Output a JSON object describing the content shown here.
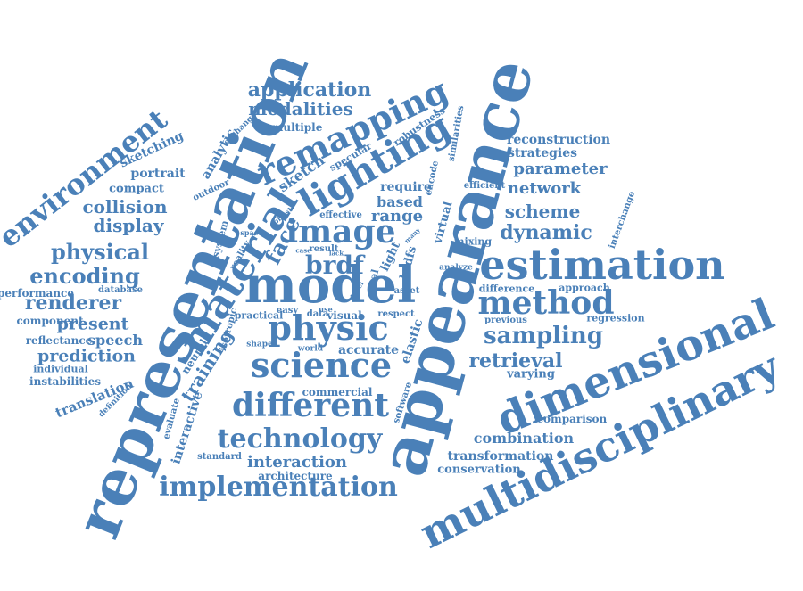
{
  "colors": {
    "word": "#4a80b8",
    "background": "#ffffff"
  },
  "words": [
    {
      "text": "representation"
    },
    {
      "text": "appearance"
    },
    {
      "text": "model"
    },
    {
      "text": "multidisciplinary"
    },
    {
      "text": "dimensional"
    },
    {
      "text": "estimation"
    },
    {
      "text": "material"
    },
    {
      "text": "lighting"
    },
    {
      "text": "remapping"
    },
    {
      "text": "image"
    },
    {
      "text": "science"
    },
    {
      "text": "different"
    },
    {
      "text": "physic"
    },
    {
      "text": "method"
    },
    {
      "text": "technology"
    },
    {
      "text": "implementation"
    },
    {
      "text": "environment"
    },
    {
      "text": "application"
    },
    {
      "text": "modalities"
    },
    {
      "text": "brdf"
    },
    {
      "text": "face"
    },
    {
      "text": "sampling"
    },
    {
      "text": "retrieval"
    },
    {
      "text": "dynamic"
    },
    {
      "text": "scheme"
    },
    {
      "text": "network"
    },
    {
      "text": "parameter"
    },
    {
      "text": "strategies"
    },
    {
      "text": "reconstruction"
    },
    {
      "text": "encoding"
    },
    {
      "text": "physical"
    },
    {
      "text": "renderer"
    },
    {
      "text": "collision"
    },
    {
      "text": "display"
    },
    {
      "text": "training"
    },
    {
      "text": "interaction"
    },
    {
      "text": "combination"
    },
    {
      "text": "transformation"
    },
    {
      "text": "conservation"
    },
    {
      "text": "comparison"
    },
    {
      "text": "prediction"
    },
    {
      "text": "present"
    },
    {
      "text": "speech"
    },
    {
      "text": "reflectance"
    },
    {
      "text": "component"
    },
    {
      "text": "performance"
    },
    {
      "text": "instabilities"
    },
    {
      "text": "individual"
    },
    {
      "text": "translation"
    },
    {
      "text": "definition"
    },
    {
      "text": "sketching"
    },
    {
      "text": "portrait"
    },
    {
      "text": "compact"
    },
    {
      "text": "outdoor"
    },
    {
      "text": "analytic"
    },
    {
      "text": "exchange"
    },
    {
      "text": "multiple"
    },
    {
      "text": "sketch"
    },
    {
      "text": "specular"
    },
    {
      "text": "robustness"
    },
    {
      "text": "require"
    },
    {
      "text": "based"
    },
    {
      "text": "range"
    },
    {
      "text": "virtual"
    },
    {
      "text": "encode"
    },
    {
      "text": "similarities"
    },
    {
      "text": "efficient"
    },
    {
      "text": "interchange"
    },
    {
      "text": "mixing"
    },
    {
      "text": "analyze"
    },
    {
      "text": "approach"
    },
    {
      "text": "difference"
    },
    {
      "text": "regression"
    },
    {
      "text": "previous"
    },
    {
      "text": "varying"
    },
    {
      "text": "elastic"
    },
    {
      "text": "accurate"
    },
    {
      "text": "visual"
    },
    {
      "text": "respect"
    },
    {
      "text": "data"
    },
    {
      "text": "world"
    },
    {
      "text": "commercial"
    },
    {
      "text": "software"
    },
    {
      "text": "practical"
    },
    {
      "text": "easy"
    },
    {
      "text": "shape"
    },
    {
      "text": "isotropic"
    },
    {
      "text": "reality"
    },
    {
      "text": "system"
    },
    {
      "text": "space"
    },
    {
      "text": "robust"
    },
    {
      "text": "effective"
    },
    {
      "text": "result"
    },
    {
      "text": "case"
    },
    {
      "text": "real"
    },
    {
      "text": "light"
    },
    {
      "text": "brdfs"
    },
    {
      "text": "asset"
    },
    {
      "text": "database"
    },
    {
      "text": "neural"
    },
    {
      "text": "interactive"
    },
    {
      "text": "evaluate"
    },
    {
      "text": "standard"
    },
    {
      "text": "architecture"
    },
    {
      "text": "level"
    },
    {
      "text": "many"
    },
    {
      "text": "lack"
    },
    {
      "text": "use"
    }
  ]
}
